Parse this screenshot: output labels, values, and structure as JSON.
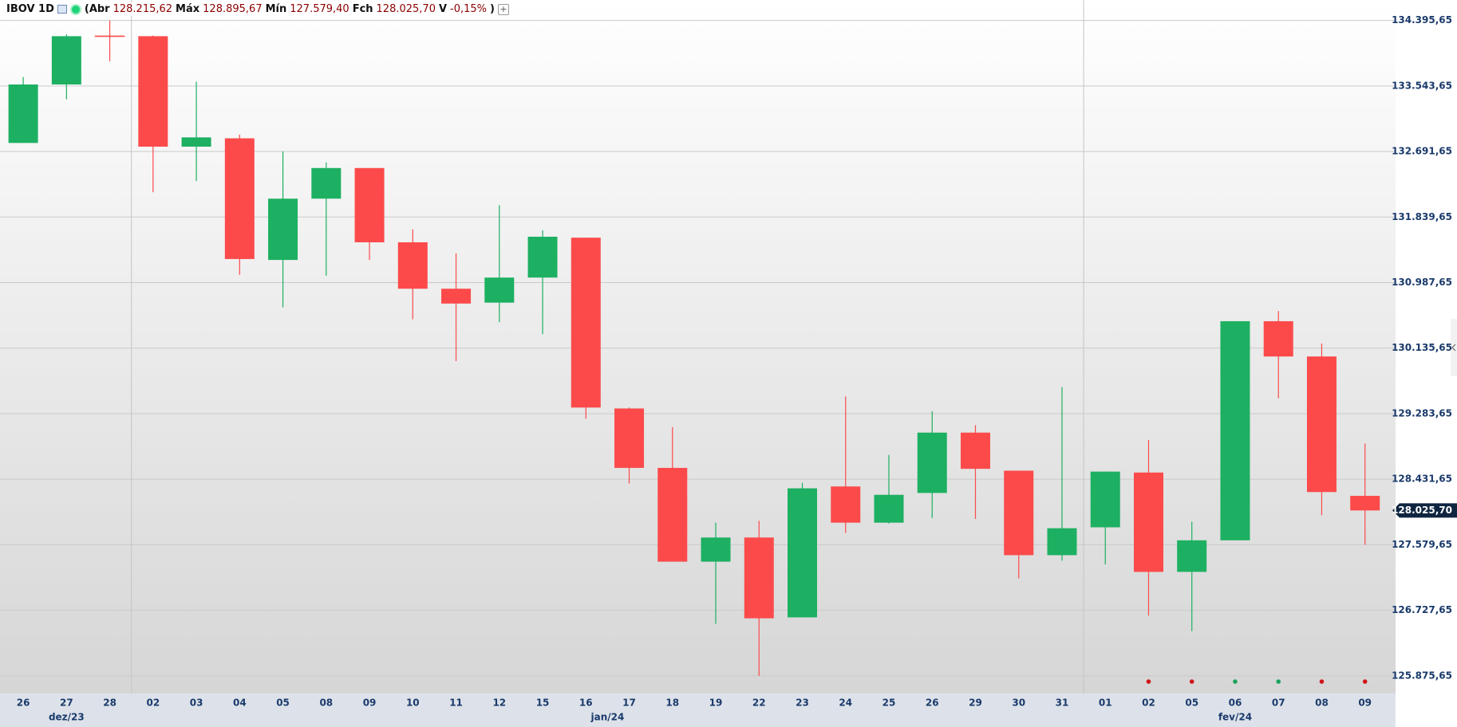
{
  "header": {
    "symbol": "IBOV 1D",
    "open_label": "(Abr",
    "open": "128.215,62",
    "high_label": "Máx",
    "high": "128.895,67",
    "low_label": "Mín",
    "low": "127.579,40",
    "close_label": "Fch",
    "close": "128.025,70",
    "change_label": "V",
    "change": "-0,15%",
    "end": ")"
  },
  "chart_data": {
    "type": "candlestick",
    "categories": [
      "26",
      "27",
      "28",
      "02",
      "03",
      "04",
      "05",
      "08",
      "09",
      "10",
      "11",
      "12",
      "15",
      "16",
      "17",
      "18",
      "19",
      "22",
      "23",
      "24",
      "25",
      "26",
      "29",
      "30",
      "31",
      "01",
      "02",
      "05",
      "06",
      "07",
      "08",
      "09"
    ],
    "groups": [
      {
        "label": "dez/23",
        "categories": [
          "26",
          "27",
          "28"
        ]
      },
      {
        "label": "jan/24",
        "categories": [
          "02",
          "03",
          "04",
          "05",
          "08",
          "09",
          "10",
          "11",
          "12",
          "15",
          "16",
          "17",
          "18",
          "19",
          "22",
          "23",
          "24",
          "25",
          "26",
          "29",
          "30",
          "31"
        ]
      },
      {
        "label": "fev/24",
        "categories": [
          "01",
          "02",
          "05",
          "06",
          "07",
          "08",
          "09"
        ]
      }
    ],
    "open": [
      132802.7,
      133563.0,
      134195.0,
      134190.5,
      132754.6,
      132863.0,
      131282.0,
      132078.6,
      132476.8,
      131511.4,
      130908.0,
      130727.0,
      131052.8,
      131571.7,
      129351.0,
      128578.9,
      127360.0,
      127673.8,
      126636.0,
      128337.5,
      127866.8,
      128253.0,
      129037.5,
      128542.6,
      127444.5,
      127806.5,
      128518.5,
      127227.3,
      127637.6,
      130485.6,
      130027.0,
      128215.62
    ],
    "high": [
      133659.5,
      134214.6,
      134395.6,
      134200.0,
      133599.2,
      132911.0,
      132694.0,
      132549.3,
      132476.8,
      131680.0,
      131366.6,
      131994.0,
      131668.0,
      131571.7,
      129363.0,
      129110.0,
      127866.8,
      127891.0,
      128385.8,
      129508.0,
      128747.8,
      129315.0,
      129134.0,
      128542.6,
      129628.8,
      128530.6,
      128940.9,
      127879.0,
      130485.6,
      130618.0,
      130196.0,
      128895.67
    ],
    "low": [
      132802.7,
      133369.9,
      133864.6,
      132163.0,
      132307.9,
      131089.0,
      130667.0,
      131077.0,
      131282.0,
      130510.0,
      129966.7,
      130473.0,
      130317.0,
      129218.5,
      128374.0,
      127360.0,
      126551.5,
      125875.6,
      126636.0,
      127734.0,
      127854.7,
      127927.0,
      127914.6,
      127142.8,
      127372.0,
      127324.0,
      126660.0,
      126455.0,
      127637.6,
      129484.0,
      127963.0,
      127579.4
    ],
    "close": [
      133563.0,
      134190.5,
      134185.0,
      132754.6,
      132875.0,
      131294.0,
      132078.6,
      132476.8,
      131511.4,
      130908.0,
      130715.0,
      131052.8,
      131583.8,
      129363.3,
      128578.9,
      127360.0,
      127673.8,
      126623.8,
      128313.4,
      127866.8,
      128229.0,
      129037.5,
      128566.8,
      127444.5,
      127794.5,
      128530.6,
      127227.3,
      127637.6,
      130485.6,
      130027.0,
      128265.0,
      128025.7
    ],
    "up_color": "#1db062",
    "down_color": "#fc4a4a",
    "signals": [
      null,
      null,
      null,
      null,
      null,
      null,
      null,
      null,
      null,
      null,
      null,
      null,
      null,
      null,
      null,
      null,
      null,
      null,
      null,
      null,
      null,
      null,
      null,
      null,
      null,
      null,
      "#d0161b",
      "#d0161b",
      "#1aa35a",
      "#1aa35a",
      "#d0161b",
      "#d0161b"
    ],
    "ylim": [
      125646,
      134661
    ],
    "yticks": [
      {
        "value": 125875.65,
        "label": "125.875,65"
      },
      {
        "value": 126727.65,
        "label": "126.727,65"
      },
      {
        "value": 127579.65,
        "label": "127.579,65"
      },
      {
        "value": 128431.65,
        "label": "128.431,65"
      },
      {
        "value": 129283.65,
        "label": "129.283,65"
      },
      {
        "value": 130135.65,
        "label": "130.135,65"
      },
      {
        "value": 130987.65,
        "label": "130.987,65"
      },
      {
        "value": 131839.65,
        "label": "131.839,65"
      },
      {
        "value": 132691.65,
        "label": "132.691,65"
      },
      {
        "value": 133543.65,
        "label": "133.543,65"
      },
      {
        "value": 134395.65,
        "label": "134.395,65"
      }
    ],
    "last_price": {
      "value": 128025.7,
      "label": "128.025,70"
    },
    "grid": true
  }
}
